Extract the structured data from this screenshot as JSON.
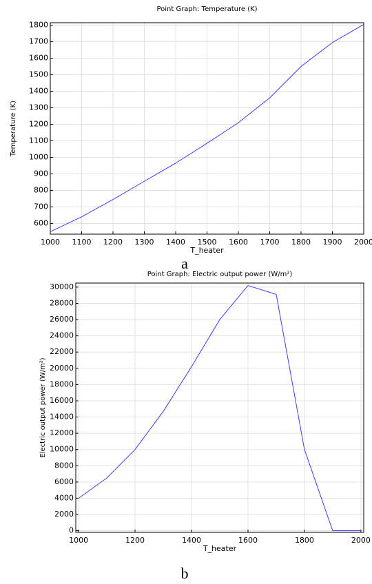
{
  "chart_data": [
    {
      "type": "line",
      "title": "Point Graph: Temperature (K)",
      "x_label": "T_heater",
      "y_label": "Temperature (K)",
      "caption": "a",
      "x": [
        1000,
        1100,
        1200,
        1300,
        1400,
        1500,
        1600,
        1700,
        1800,
        1900,
        2000
      ],
      "series": [
        {
          "color": "#3b3bff",
          "values": [
            550,
            640,
            745,
            855,
            965,
            1085,
            1210,
            1360,
            1550,
            1695,
            1805
          ]
        }
      ],
      "xlim": [
        1000,
        2000
      ],
      "xticks": [
        1000,
        1100,
        1200,
        1300,
        1400,
        1500,
        1600,
        1700,
        1800,
        1900,
        2000
      ],
      "ylim": [
        535,
        1815
      ],
      "yticks": [
        600,
        700,
        800,
        900,
        1000,
        1100,
        1200,
        1300,
        1400,
        1500,
        1600,
        1700,
        1800
      ],
      "grid": true
    },
    {
      "type": "line",
      "title": "Point Graph: Electric output power (W/m²)",
      "x_label": "T_heater",
      "y_label": "Electric output power (W/m²)",
      "caption": "b",
      "x": [
        1000,
        1100,
        1200,
        1300,
        1400,
        1500,
        1600,
        1700,
        1800,
        1900,
        2000
      ],
      "series": [
        {
          "color": "#3b3bff",
          "values": [
            4000,
            6500,
            10000,
            14700,
            20200,
            26000,
            30200,
            29100,
            10000,
            0,
            0
          ]
        }
      ],
      "xlim": [
        990,
        2010
      ],
      "xticks": [
        1000,
        1200,
        1400,
        1600,
        1800,
        2000
      ],
      "ylim": [
        -200,
        30500
      ],
      "yticks": [
        0,
        2000,
        4000,
        6000,
        8000,
        10000,
        12000,
        14000,
        16000,
        18000,
        20000,
        22000,
        24000,
        26000,
        28000,
        30000
      ],
      "grid": true
    }
  ]
}
